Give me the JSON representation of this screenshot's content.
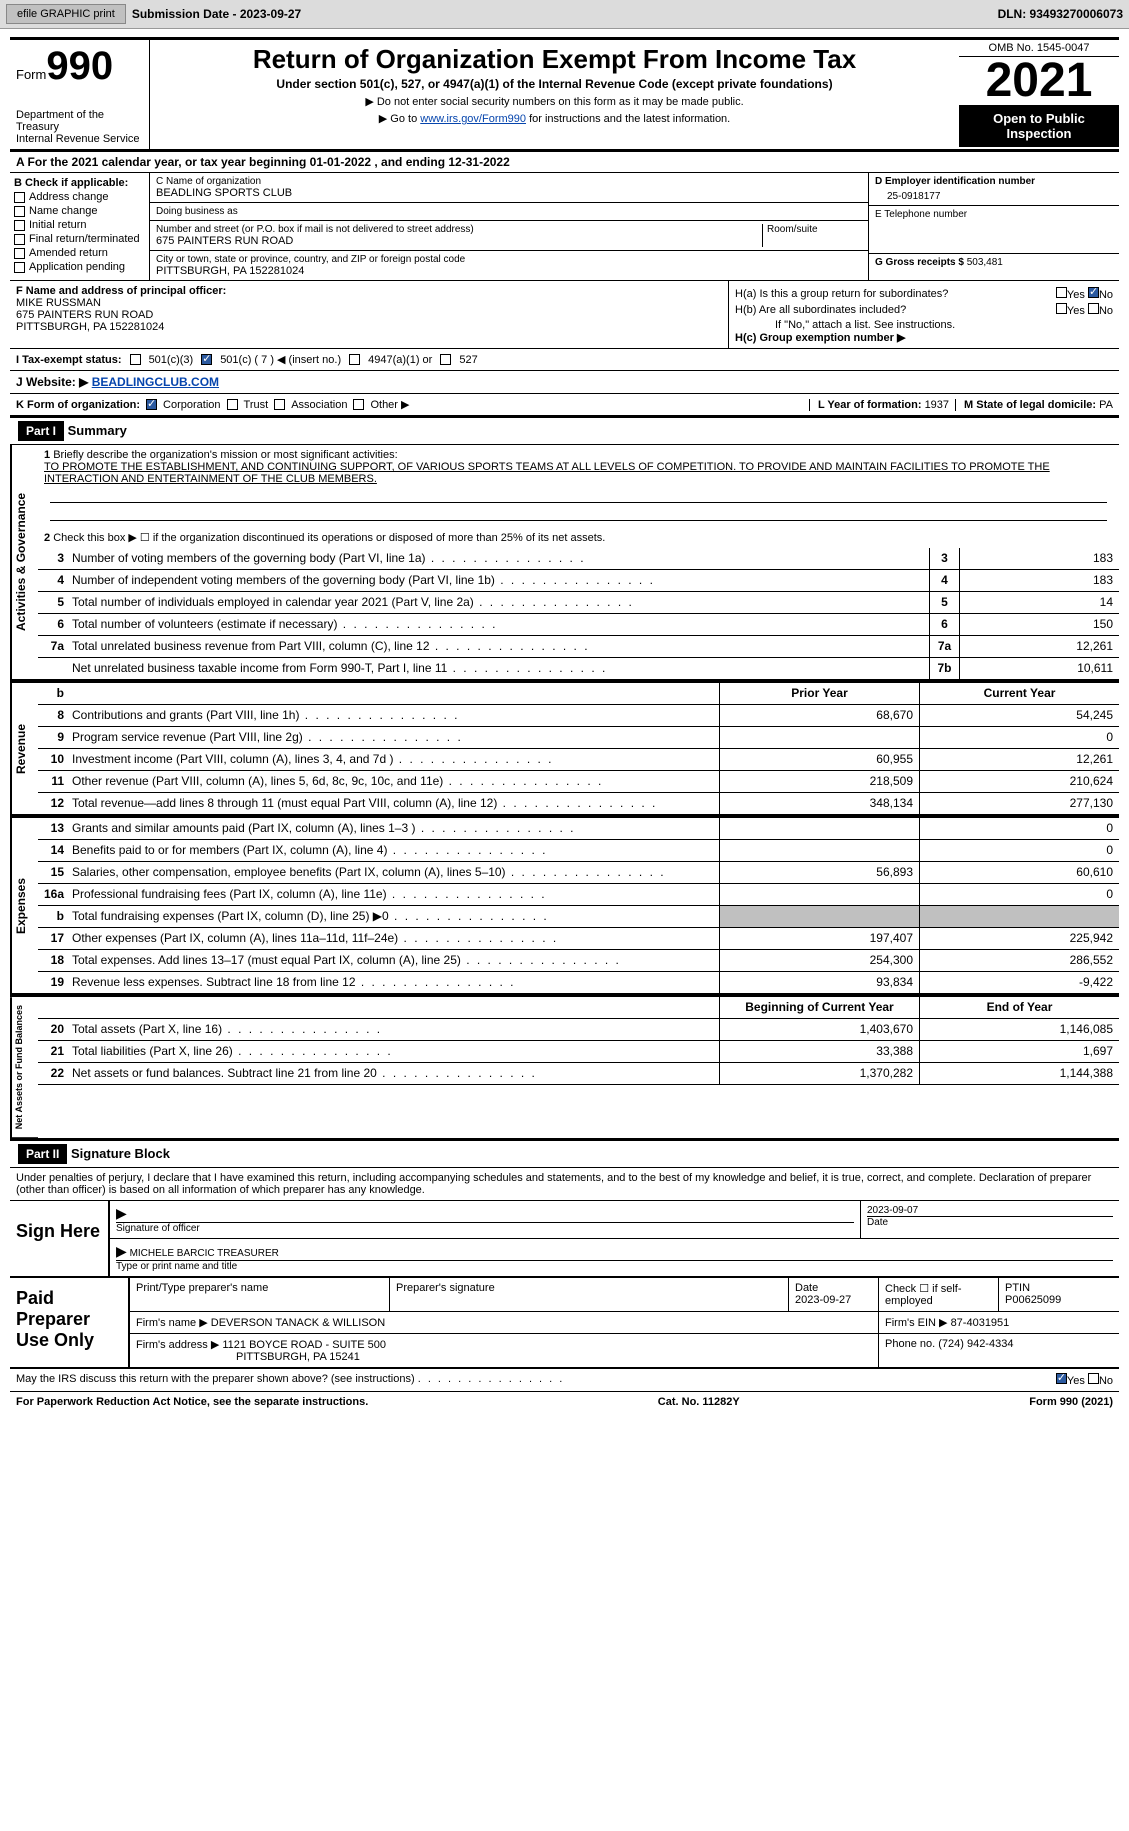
{
  "toolbar": {
    "efile": "efile GRAPHIC print",
    "submission_label": "Submission Date - 2023-09-27",
    "dln": "DLN: 93493270006073"
  },
  "header": {
    "form_label": "Form",
    "form_number": "990",
    "dept": "Department of the Treasury\nInternal Revenue Service",
    "title": "Return of Organization Exempt From Income Tax",
    "subtitle": "Under section 501(c), 527, or 4947(a)(1) of the Internal Revenue Code (except private foundations)",
    "note1": "▶ Do not enter social security numbers on this form as it may be made public.",
    "note2_pre": "▶ Go to ",
    "note2_link": "www.irs.gov/Form990",
    "note2_post": " for instructions and the latest information.",
    "omb": "OMB No. 1545-0047",
    "year": "2021",
    "open": "Open to Public Inspection"
  },
  "row_a": "A For the 2021 calendar year, or tax year beginning 01-01-2022    , and ending 12-31-2022",
  "section_b": {
    "title": "B Check if applicable:",
    "opts": [
      "Address change",
      "Name change",
      "Initial return",
      "Final return/terminated",
      "Amended return",
      "Application pending"
    ]
  },
  "section_c": {
    "name_label": "C Name of organization",
    "name": "BEADLING SPORTS CLUB",
    "dba_label": "Doing business as",
    "dba": "",
    "addr_label": "Number and street (or P.O. box if mail is not delivered to street address)",
    "addr": "675 PAINTERS RUN ROAD",
    "room_label": "Room/suite",
    "city_label": "City or town, state or province, country, and ZIP or foreign postal code",
    "city": "PITTSBURGH, PA  152281024"
  },
  "section_d": {
    "ein_label": "D Employer identification number",
    "ein": "25-0918177",
    "tel_label": "E Telephone number",
    "tel": "",
    "gross_label": "G Gross receipts $",
    "gross": "503,481"
  },
  "section_f": {
    "label": "F  Name and address of principal officer:",
    "name": "MIKE RUSSMAN",
    "addr1": "675 PAINTERS RUN ROAD",
    "addr2": "PITTSBURGH, PA  152281024"
  },
  "section_h": {
    "ha": "H(a)  Is this a group return for subordinates?",
    "hb": "H(b)  Are all subordinates included?",
    "hb_note": "If \"No,\" attach a list. See instructions.",
    "hc": "H(c)  Group exemption number ▶",
    "yes": "Yes",
    "no": "No"
  },
  "row_i": {
    "label": "I    Tax-exempt status:",
    "o1": "501(c)(3)",
    "o2": "501(c) ( 7 ) ◀ (insert no.)",
    "o3": "4947(a)(1) or",
    "o4": "527"
  },
  "row_j": {
    "label": "J   Website: ▶ ",
    "val": "BEADLINGCLUB.COM"
  },
  "row_k": {
    "label": "K Form of organization:",
    "o1": "Corporation",
    "o2": "Trust",
    "o3": "Association",
    "o4": "Other ▶",
    "yf_label": "L Year of formation:",
    "yf": "1937",
    "sd_label": "M State of legal domicile:",
    "sd": "PA"
  },
  "part1": {
    "hdr": "Part I",
    "title": "Summary",
    "l1_label": "Briefly describe the organization's mission or most significant activities:",
    "l1_text": "TO PROMOTE THE ESTABLISHMENT, AND CONTINUING SUPPORT, OF VARIOUS SPORTS TEAMS AT ALL LEVELS OF COMPETITION. TO PROVIDE AND MAINTAIN FACILITIES TO PROMOTE THE INTERACTION AND ENTERTAINMENT OF THE CLUB MEMBERS.",
    "l2": "Check this box ▶ ☐  if the organization discontinued its operations or disposed of more than 25% of its net assets.",
    "rows_single": [
      {
        "n": "3",
        "d": "Number of voting members of the governing body (Part VI, line 1a)",
        "b": "3",
        "v": "183"
      },
      {
        "n": "4",
        "d": "Number of independent voting members of the governing body (Part VI, line 1b)",
        "b": "4",
        "v": "183"
      },
      {
        "n": "5",
        "d": "Total number of individuals employed in calendar year 2021 (Part V, line 2a)",
        "b": "5",
        "v": "14"
      },
      {
        "n": "6",
        "d": "Total number of volunteers (estimate if necessary)",
        "b": "6",
        "v": "150"
      },
      {
        "n": "7a",
        "d": "Total unrelated business revenue from Part VIII, column (C), line 12",
        "b": "7a",
        "v": "12,261"
      },
      {
        "n": "",
        "d": "Net unrelated business taxable income from Form 990-T, Part I, line 11",
        "b": "7b",
        "v": "10,611"
      }
    ],
    "col_py": "Prior Year",
    "col_cy": "Current Year",
    "rows_rev": [
      {
        "n": "8",
        "d": "Contributions and grants (Part VIII, line 1h)",
        "py": "68,670",
        "cy": "54,245"
      },
      {
        "n": "9",
        "d": "Program service revenue (Part VIII, line 2g)",
        "py": "",
        "cy": "0"
      },
      {
        "n": "10",
        "d": "Investment income (Part VIII, column (A), lines 3, 4, and 7d )",
        "py": "60,955",
        "cy": "12,261"
      },
      {
        "n": "11",
        "d": "Other revenue (Part VIII, column (A), lines 5, 6d, 8c, 9c, 10c, and 11e)",
        "py": "218,509",
        "cy": "210,624"
      },
      {
        "n": "12",
        "d": "Total revenue—add lines 8 through 11 (must equal Part VIII, column (A), line 12)",
        "py": "348,134",
        "cy": "277,130"
      }
    ],
    "rows_exp": [
      {
        "n": "13",
        "d": "Grants and similar amounts paid (Part IX, column (A), lines 1–3 )",
        "py": "",
        "cy": "0"
      },
      {
        "n": "14",
        "d": "Benefits paid to or for members (Part IX, column (A), line 4)",
        "py": "",
        "cy": "0"
      },
      {
        "n": "15",
        "d": "Salaries, other compensation, employee benefits (Part IX, column (A), lines 5–10)",
        "py": "56,893",
        "cy": "60,610"
      },
      {
        "n": "16a",
        "d": "Professional fundraising fees (Part IX, column (A), line 11e)",
        "py": "",
        "cy": "0"
      },
      {
        "n": "b",
        "d": "Total fundraising expenses (Part IX, column (D), line 25) ▶0",
        "py": "gray",
        "cy": "gray"
      },
      {
        "n": "17",
        "d": "Other expenses (Part IX, column (A), lines 11a–11d, 11f–24e)",
        "py": "197,407",
        "cy": "225,942"
      },
      {
        "n": "18",
        "d": "Total expenses. Add lines 13–17 (must equal Part IX, column (A), line 25)",
        "py": "254,300",
        "cy": "286,552"
      },
      {
        "n": "19",
        "d": "Revenue less expenses. Subtract line 18 from line 12",
        "py": "93,834",
        "cy": "-9,422"
      }
    ],
    "col_bcy": "Beginning of Current Year",
    "col_eoy": "End of Year",
    "rows_net": [
      {
        "n": "20",
        "d": "Total assets (Part X, line 16)",
        "py": "1,403,670",
        "cy": "1,146,085"
      },
      {
        "n": "21",
        "d": "Total liabilities (Part X, line 26)",
        "py": "33,388",
        "cy": "1,697"
      },
      {
        "n": "22",
        "d": "Net assets or fund balances. Subtract line 21 from line 20",
        "py": "1,370,282",
        "cy": "1,144,388"
      }
    ],
    "vtab1": "Activities & Governance",
    "vtab2": "Revenue",
    "vtab3": "Expenses",
    "vtab4": "Net Assets or Fund Balances"
  },
  "part2": {
    "hdr": "Part II",
    "title": "Signature Block",
    "intro": "Under penalties of perjury, I declare that I have examined this return, including accompanying schedules and statements, and to the best of my knowledge and belief, it is true, correct, and complete. Declaration of preparer (other than officer) is based on all information of which preparer has any knowledge.",
    "sign_here": "Sign Here",
    "sig_officer": "Signature of officer",
    "sig_date": "2023-09-07",
    "date_label": "Date",
    "name_title": "MICHELE BARCIC  TREASURER",
    "name_title_label": "Type or print name and title",
    "paid": "Paid Preparer Use Only",
    "prep_name_label": "Print/Type preparer's name",
    "prep_sig_label": "Preparer's signature",
    "prep_date_label": "Date",
    "prep_date": "2023-09-27",
    "check_self": "Check ☐ if self-employed",
    "ptin_label": "PTIN",
    "ptin": "P00625099",
    "firm_name_label": "Firm's name    ▶",
    "firm_name": "DEVERSON TANACK & WILLISON",
    "firm_ein_label": "Firm's EIN ▶",
    "firm_ein": "87-4031951",
    "firm_addr_label": "Firm's address ▶",
    "firm_addr1": "1121 BOYCE ROAD - SUITE 500",
    "firm_addr2": "PITTSBURGH, PA  15241",
    "phone_label": "Phone no.",
    "phone": "(724) 942-4334"
  },
  "footer": {
    "discuss": "May the IRS discuss this return with the preparer shown above? (see instructions)",
    "yes": "Yes",
    "no": "No",
    "paperwork": "For Paperwork Reduction Act Notice, see the separate instructions.",
    "cat": "Cat. No. 11282Y",
    "formref": "Form 990 (2021)"
  }
}
